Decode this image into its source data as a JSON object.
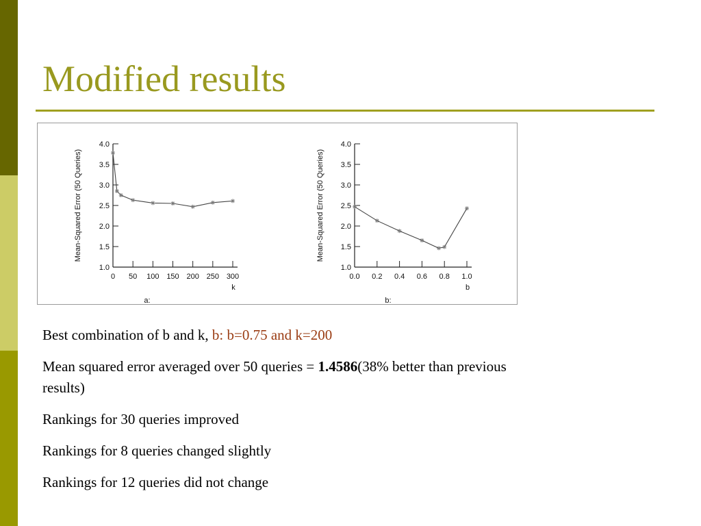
{
  "slide": {
    "title": "Modified results",
    "colors": {
      "title": "#99991f",
      "rule": "#a0a020",
      "sidebar_dark": "#666600",
      "sidebar_light": "#cccc66",
      "sidebar_mid": "#999900",
      "highlight": "#9a3c13",
      "plot_line": "#444444"
    }
  },
  "bullets": {
    "b1": {
      "text": "Best combination of  b and k, ",
      "highlight": "b: b=0.75 and k=200"
    },
    "b2": {
      "text_before": "Mean squared error averaged over 50 queries = ",
      "bold": "1.4586",
      "text_after": "(38% better than previous results)"
    },
    "b3": {
      "text": "Rankings for 30 queries improved"
    },
    "b4": {
      "text": "Rankings for 8 queries changed slightly"
    },
    "b5": {
      "text": "Rankings for 12 queries did not change"
    }
  },
  "chart_data": [
    {
      "type": "line",
      "panel_label": "a:",
      "xlabel": "k",
      "ylabel": "Mean-Squared Error (50 Queries)",
      "x_ticks": [
        0,
        50,
        100,
        150,
        200,
        250,
        300
      ],
      "y_ticks": [
        1.0,
        1.5,
        2.0,
        2.5,
        3.0,
        3.5,
        4.0
      ],
      "y_tick_labels": [
        "1.0",
        "1.5",
        "2.0",
        "2.5",
        "3.0",
        "3.5",
        "4.0"
      ],
      "xlim": [
        0,
        300
      ],
      "ylim": [
        1.0,
        4.0
      ],
      "x": [
        0,
        10,
        20,
        50,
        100,
        150,
        200,
        250,
        300
      ],
      "y": [
        3.78,
        2.85,
        2.75,
        2.63,
        2.56,
        2.55,
        2.47,
        2.57,
        2.61
      ]
    },
    {
      "type": "line",
      "panel_label": "b:",
      "xlabel": "b",
      "ylabel": "Mean-Squared Error (50 Queries)",
      "x_ticks": [
        0.0,
        0.2,
        0.4,
        0.6,
        0.8,
        1.0
      ],
      "x_tick_labels": [
        "0.0",
        "0.2",
        "0.4",
        "0.6",
        "0.8",
        "1.0"
      ],
      "y_ticks": [
        1.0,
        1.5,
        2.0,
        2.5,
        3.0,
        3.5,
        4.0
      ],
      "y_tick_labels": [
        "1.0",
        "1.5",
        "2.0",
        "2.5",
        "3.0",
        "3.5",
        "4.0"
      ],
      "xlim": [
        0.0,
        1.0
      ],
      "ylim": [
        1.0,
        4.0
      ],
      "x": [
        0.0,
        0.2,
        0.4,
        0.6,
        0.75,
        0.8,
        1.0
      ],
      "y": [
        2.47,
        2.13,
        1.88,
        1.65,
        1.46,
        1.49,
        2.43
      ]
    }
  ]
}
